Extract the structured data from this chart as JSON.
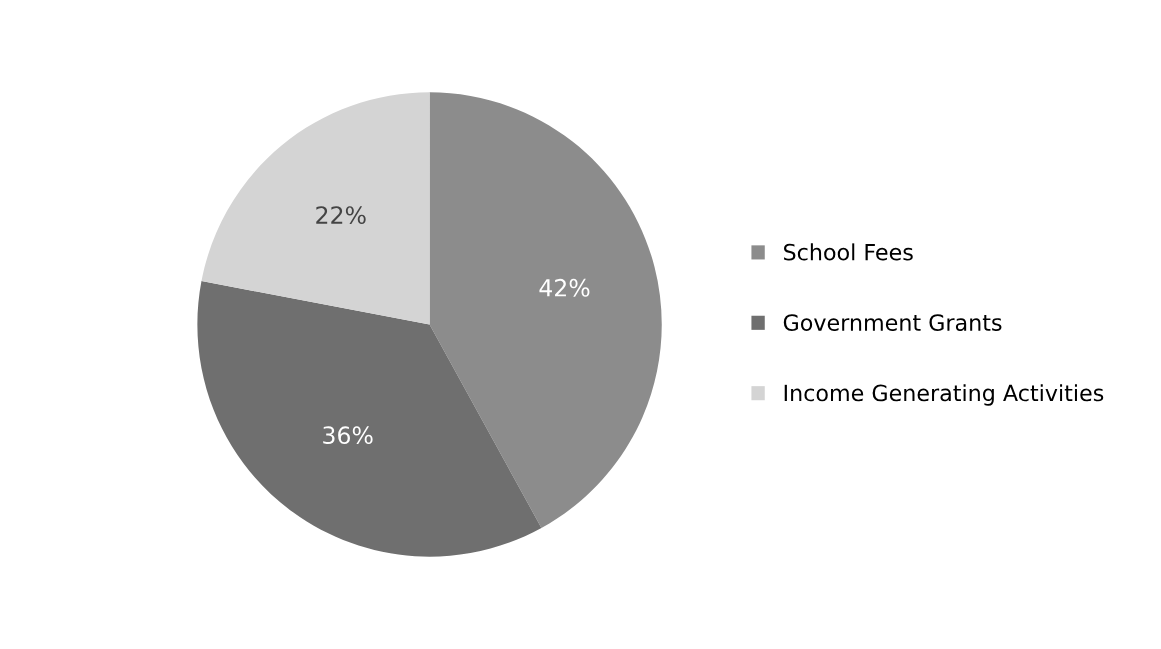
{
  "chart_data": {
    "type": "pie",
    "categories": [
      "School Fees",
      "Government Grants",
      "Income Generating Activities"
    ],
    "values": [
      42,
      36,
      22
    ],
    "value_labels": [
      "42%",
      "36%",
      "22%"
    ],
    "colors": [
      "#8c8c8c",
      "#6f6f6f",
      "#d4d4d4"
    ],
    "legend": "right"
  }
}
